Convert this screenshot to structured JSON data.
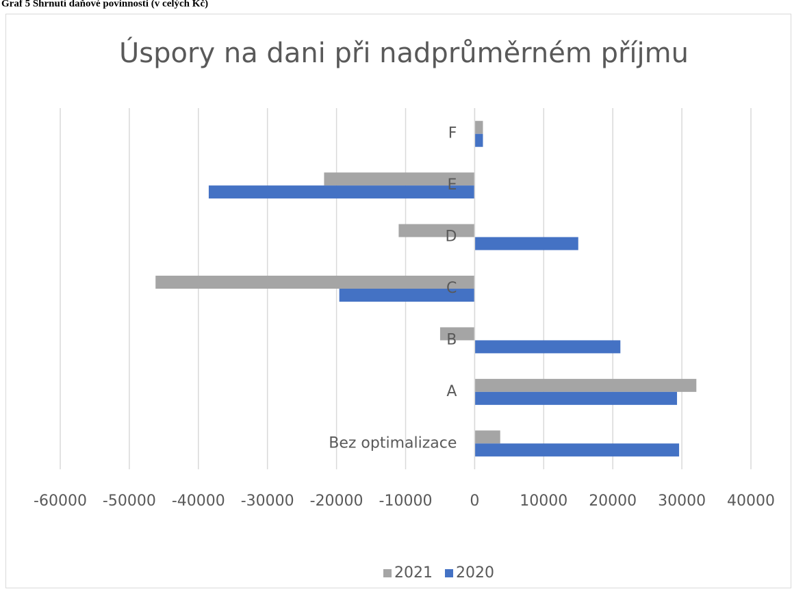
{
  "heading": "Graf 5 Shrnutí daňové povinnosti (v celých Kč)",
  "chart_data": {
    "type": "hbar",
    "title": "Úspory na dani při nadprůměrném  příjmu",
    "categories": [
      "Bez optimalizace",
      "A",
      "B",
      "C",
      "D",
      "E",
      "F"
    ],
    "series": [
      {
        "name": "2021",
        "color": "#a5a5a5",
        "values": [
          3700,
          32100,
          -5000,
          -46200,
          -11000,
          -21800,
          1200
        ]
      },
      {
        "name": "2020",
        "color": "#4472c4",
        "values": [
          29600,
          29300,
          21100,
          -19600,
          15000,
          -38500,
          1200
        ]
      }
    ],
    "xlim": [
      -60000,
      40000
    ],
    "xticks": [
      -60000,
      -50000,
      -40000,
      -30000,
      -20000,
      -10000,
      0,
      10000,
      20000,
      30000,
      40000
    ],
    "grid": true,
    "legend": "bottom"
  }
}
